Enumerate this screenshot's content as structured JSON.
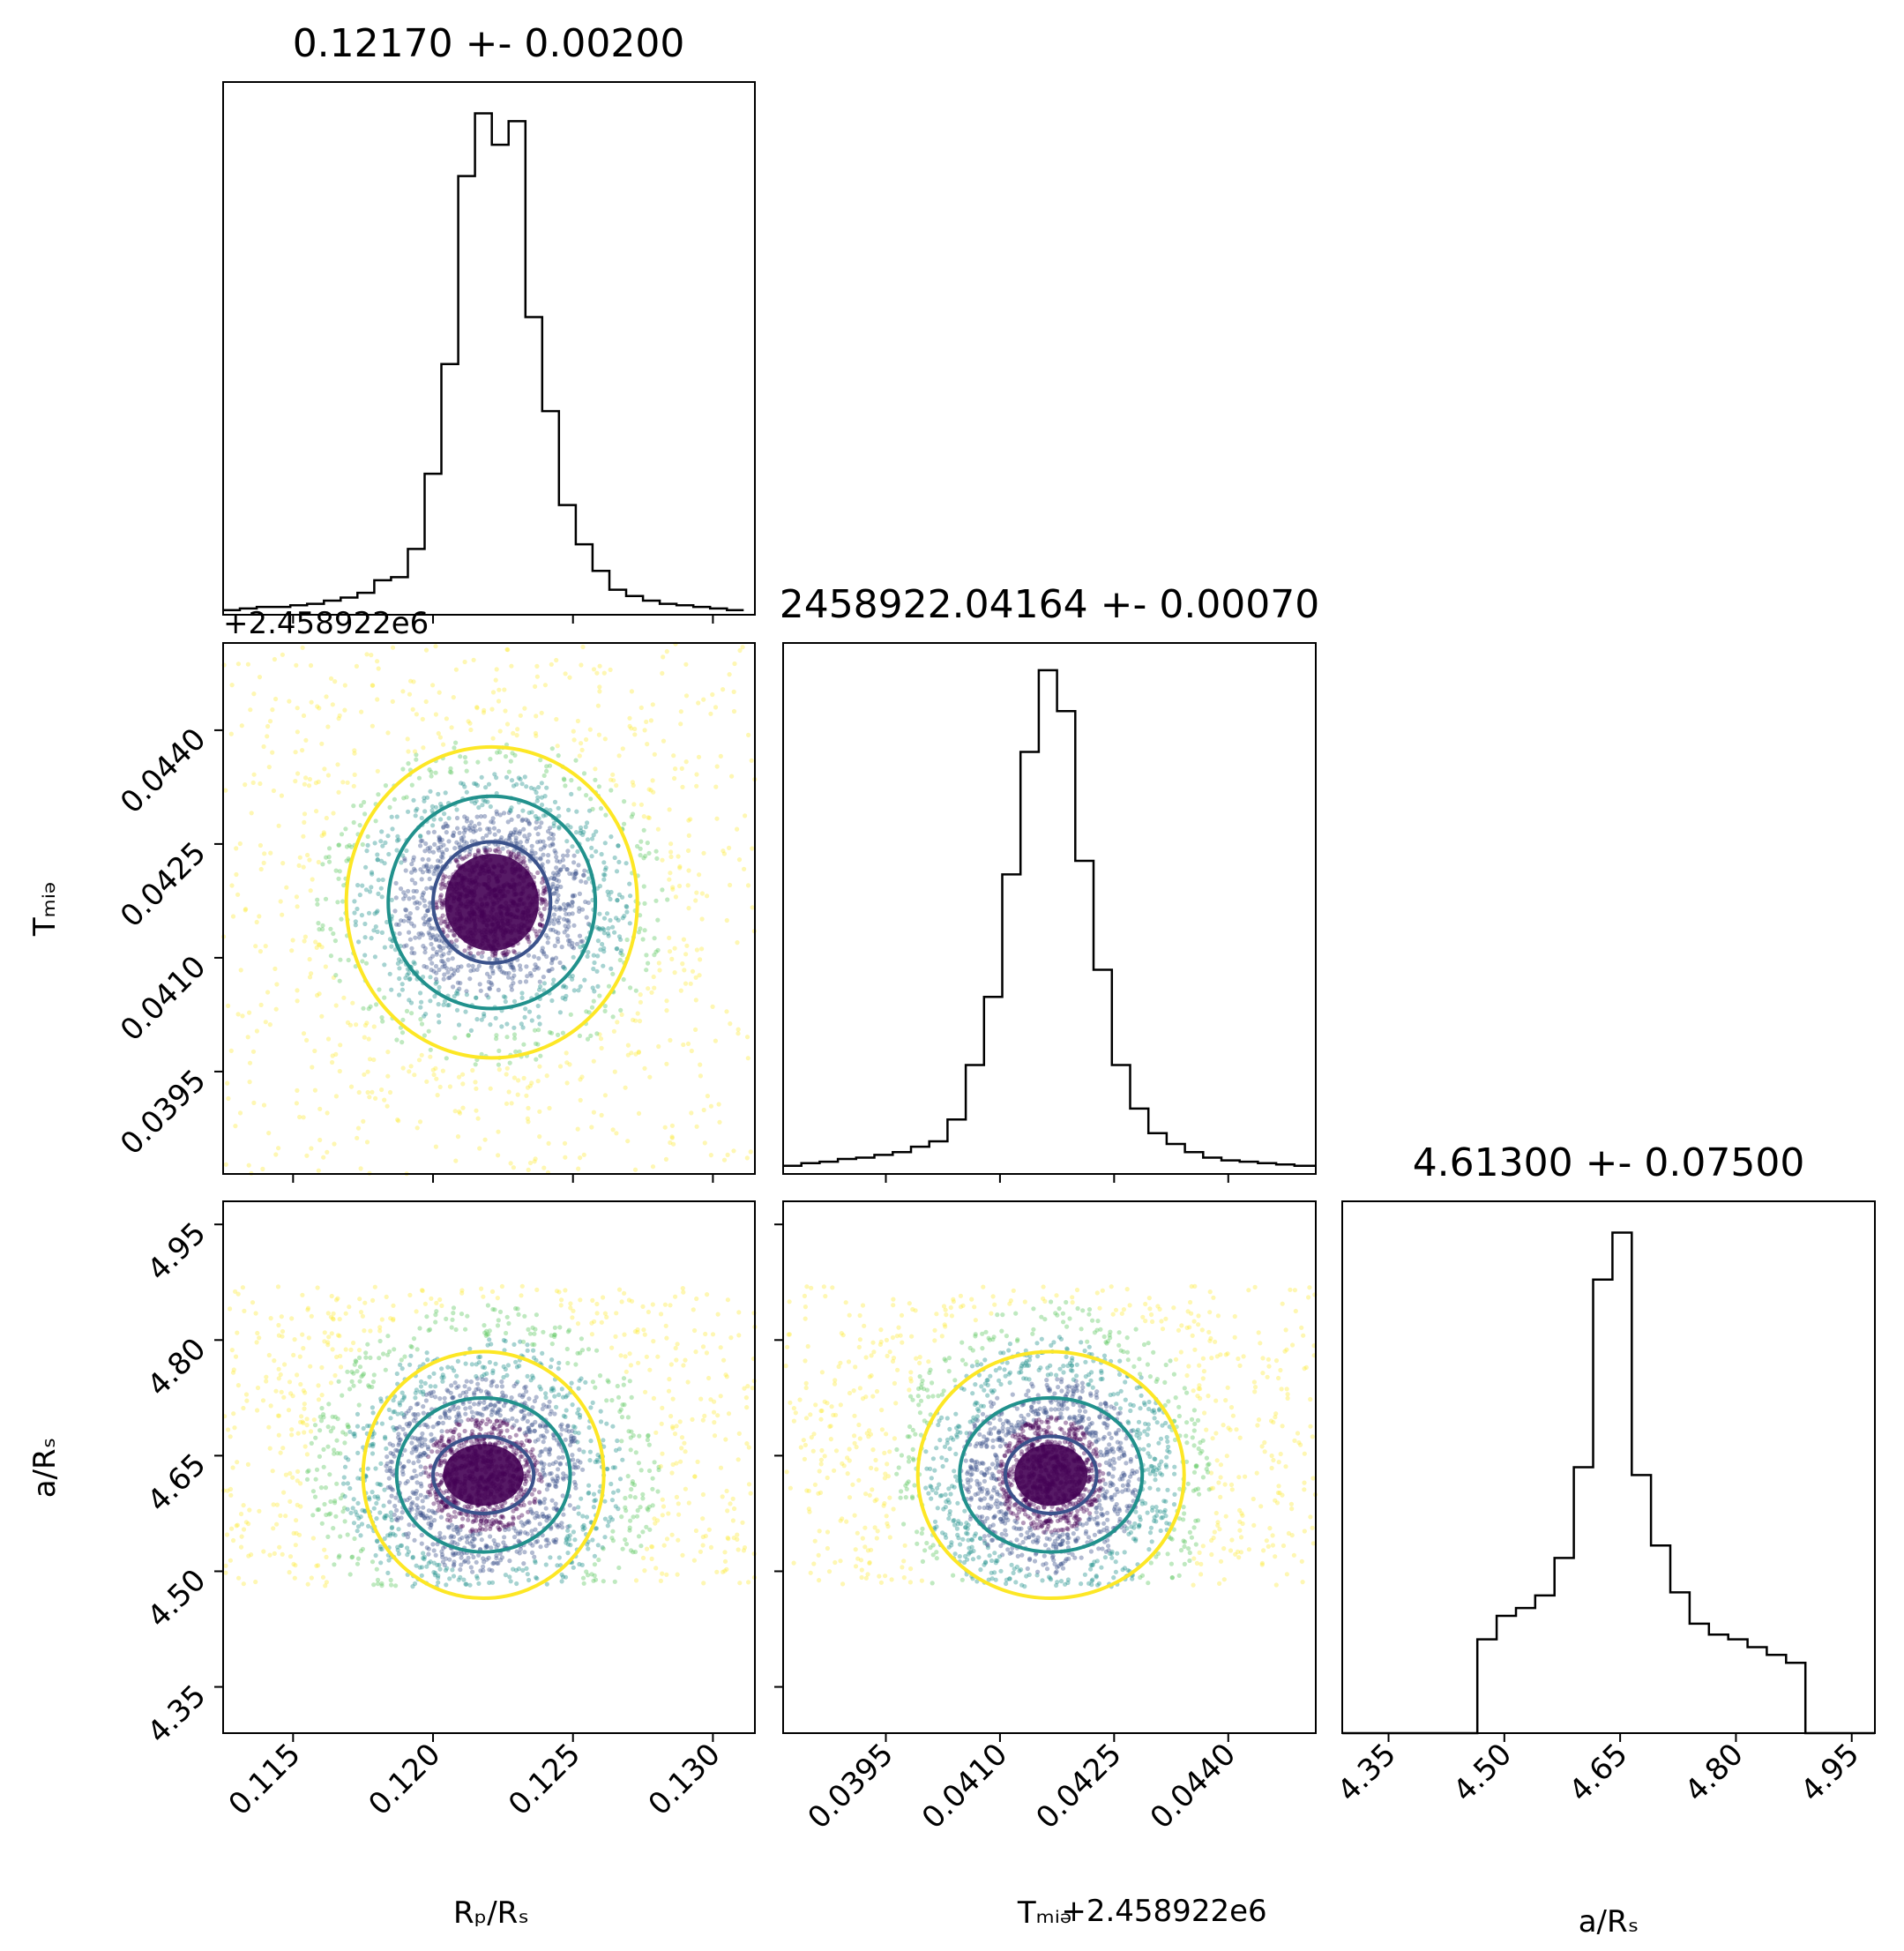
{
  "figure": {
    "type": "corner-plot",
    "parameters": [
      "R_p/R_s",
      "T_mid",
      "a/R_s"
    ]
  },
  "chart_data": [
    {
      "type": "histogram",
      "panel": "diag-0",
      "title": "0.12170 +- 0.00200",
      "xlim": [
        0.1125,
        0.1315
      ],
      "xticks": [
        0.115,
        0.12,
        0.125,
        0.13
      ],
      "bins_x": [
        0.1125,
        0.1131,
        0.1137,
        0.1143,
        0.1149,
        0.1155,
        0.1161,
        0.1167,
        0.1173,
        0.1179,
        0.1185,
        0.1191,
        0.1197,
        0.1203,
        0.1209,
        0.1215,
        0.1221,
        0.1227,
        0.1233,
        0.1239,
        0.1245,
        0.1251,
        0.1257,
        0.1263,
        0.1269,
        0.1275,
        0.1281,
        0.1287,
        0.1293,
        0.1299,
        0.1305,
        0.1311
      ],
      "counts": [
        3,
        4,
        5,
        5,
        6,
        7,
        9,
        11,
        14,
        22,
        24,
        42,
        90,
        160,
        280,
        320,
        300,
        315,
        190,
        130,
        70,
        45,
        28,
        16,
        12,
        9,
        7,
        6,
        5,
        4,
        3
      ],
      "ylim": [
        0,
        340
      ]
    },
    {
      "type": "histogram",
      "panel": "diag-1",
      "title": "2458922.04164 +- 0.00070",
      "xlim": [
        0.03815,
        0.04515
      ],
      "xticks": [
        0.0395,
        0.041,
        0.0425,
        0.044
      ],
      "bins_x": [
        0.03815,
        0.03839,
        0.03863,
        0.03887,
        0.03911,
        0.03935,
        0.03959,
        0.03983,
        0.04007,
        0.04031,
        0.04055,
        0.04079,
        0.04103,
        0.04127,
        0.04151,
        0.04175,
        0.04199,
        0.04223,
        0.04247,
        0.04271,
        0.04295,
        0.04319,
        0.04343,
        0.04367,
        0.04391,
        0.04415,
        0.04439,
        0.04463,
        0.04487,
        0.04515
      ],
      "counts": [
        6,
        8,
        9,
        11,
        12,
        14,
        16,
        20,
        24,
        40,
        80,
        130,
        220,
        310,
        370,
        340,
        230,
        150,
        80,
        48,
        30,
        22,
        16,
        12,
        10,
        9,
        8,
        7,
        6
      ],
      "ylim": [
        0,
        390
      ]
    },
    {
      "type": "histogram",
      "panel": "diag-2",
      "title": "4.61300 +- 0.07500",
      "xlim": [
        4.29,
        4.98
      ],
      "xticks": [
        4.35,
        4.5,
        4.65,
        4.8,
        4.95
      ],
      "bins_x": [
        4.29,
        4.315,
        4.34,
        4.365,
        4.39,
        4.415,
        4.44,
        4.465,
        4.49,
        4.515,
        4.54,
        4.565,
        4.59,
        4.615,
        4.64,
        4.665,
        4.69,
        4.715,
        4.74,
        4.765,
        4.79,
        4.815,
        4.84,
        4.865,
        4.89,
        4.915,
        4.94,
        4.965,
        4.98
      ],
      "counts": [
        0,
        0,
        0,
        0,
        0,
        0,
        0,
        60,
        75,
        80,
        88,
        112,
        170,
        290,
        320,
        165,
        120,
        90,
        70,
        63,
        60,
        55,
        50,
        45,
        0,
        0,
        0,
        0
      ],
      "ylim": [
        0,
        340
      ]
    },
    {
      "type": "scatter",
      "panel": "t_mid-vs-rp",
      "xlim": [
        0.1125,
        0.1315
      ],
      "ylim": [
        0.03815,
        0.04515
      ],
      "xticks": [
        0.115,
        0.12,
        0.125,
        0.13
      ],
      "yticks": [
        0.0395,
        0.041,
        0.0425,
        0.044
      ],
      "center": [
        0.1221,
        0.04173
      ],
      "spread": [
        0.0021,
        0.00072
      ],
      "contours": [
        {
          "level": "inner",
          "color": "#3b528b",
          "rx": 0.0021,
          "ry": 0.0008
        },
        {
          "level": "middle",
          "color": "#21918c",
          "rx": 0.0037,
          "ry": 0.0014
        },
        {
          "level": "outer",
          "color": "#fde725",
          "rx": 0.0052,
          "ry": 0.00205
        }
      ]
    },
    {
      "type": "scatter",
      "panel": "a_rs-vs-rp",
      "xlim": [
        0.1125,
        0.1315
      ],
      "ylim": [
        4.29,
        4.98
      ],
      "xticks": [
        0.115,
        0.12,
        0.125,
        0.13
      ],
      "yticks": [
        4.35,
        4.5,
        4.65,
        4.8,
        4.95
      ],
      "center": [
        0.1218,
        4.625
      ],
      "spread": [
        0.0021,
        0.075
      ],
      "contours": [
        {
          "level": "inner",
          "color": "#3b528b",
          "rx": 0.0018,
          "ry": 0.05
        },
        {
          "level": "middle",
          "color": "#21918c",
          "rx": 0.0031,
          "ry": 0.1
        },
        {
          "level": "outer",
          "color": "#fde725",
          "rx": 0.0043,
          "ry": 0.16
        }
      ]
    },
    {
      "type": "scatter",
      "panel": "a_rs-vs-t_mid",
      "xlim": [
        0.03815,
        0.04515
      ],
      "ylim": [
        4.29,
        4.98
      ],
      "xticks": [
        0.0395,
        0.041,
        0.0425,
        0.044
      ],
      "yticks": [
        4.35,
        4.5,
        4.65,
        4.8,
        4.95
      ],
      "center": [
        0.04167,
        4.625
      ],
      "spread": [
        0.0007,
        0.075
      ],
      "contours": [
        {
          "level": "inner",
          "color": "#3b528b",
          "rx": 0.0006,
          "ry": 0.05
        },
        {
          "level": "middle",
          "color": "#21918c",
          "rx": 0.0012,
          "ry": 0.1
        },
        {
          "level": "outer",
          "color": "#fde725",
          "rx": 0.00175,
          "ry": 0.16
        }
      ]
    }
  ],
  "labels": {
    "x0": "Rₚ/Rₛ",
    "x1": "Tₘᵢₔ",
    "x1_offset": "+2.458922e6",
    "x2": "a/Rₛ",
    "y1": "Tₘᵢₔ",
    "y2": "a/Rₛ",
    "y1_offset": "+2.458922e6"
  },
  "colors": {
    "line": "#000000",
    "viridis": [
      "#440154",
      "#3b528b",
      "#21918c",
      "#5ec962",
      "#fde725"
    ]
  }
}
